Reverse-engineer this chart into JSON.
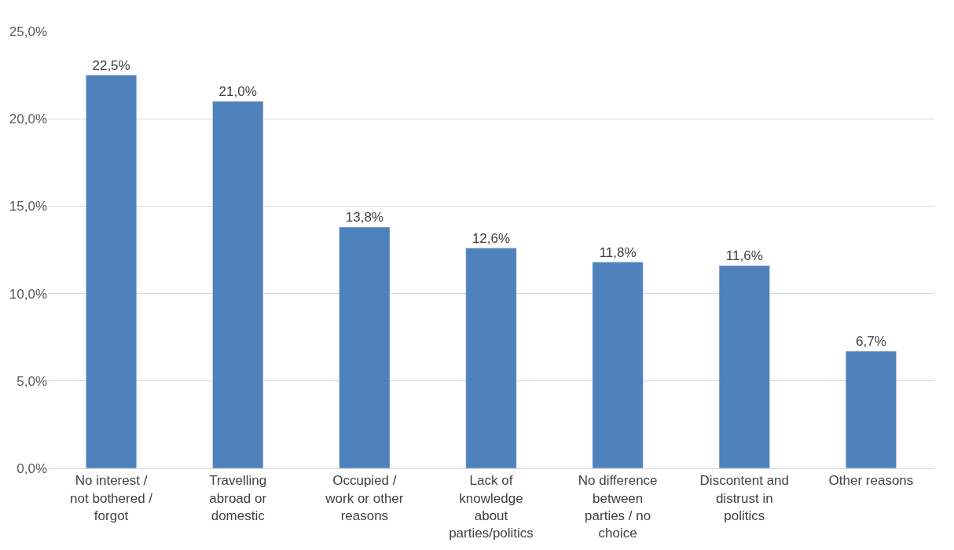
{
  "chart_data": {
    "type": "bar",
    "categories": [
      "No interest / not bothered / forgot",
      "Travelling abroad or domestic",
      "Occupied / work or other reasons",
      "Lack of knowledge about parties/politics",
      "No difference between parties / no choice",
      "Discontent and distrust in politics",
      "Other reasons"
    ],
    "values": [
      22.5,
      21.0,
      13.8,
      12.6,
      11.8,
      11.6,
      6.7
    ],
    "value_labels": [
      "22,5%",
      "21,0%",
      "13,8%",
      "12,6%",
      "11,8%",
      "11,6%",
      "6,7%"
    ],
    "color": "#4f81bd",
    "ylim": [
      0,
      25
    ],
    "yticks": [
      {
        "value": 0,
        "label": "0,0%"
      },
      {
        "value": 5,
        "label": "5,0%"
      },
      {
        "value": 10,
        "label": "10,0%"
      },
      {
        "value": 15,
        "label": "15,0%"
      },
      {
        "value": 20,
        "label": "20,0%"
      },
      {
        "value": 25,
        "label": "25,0%"
      }
    ],
    "grid": "y",
    "legend": false
  }
}
